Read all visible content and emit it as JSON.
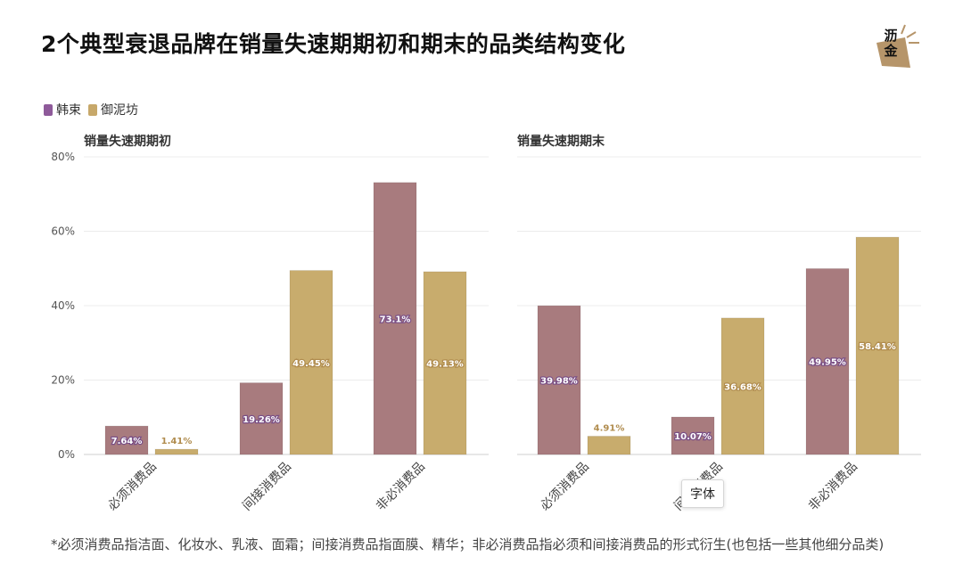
{
  "title": "2个典型衰退品牌在销量失速期期初和期末的品类结构变化",
  "logo": {
    "line1": "沥",
    "line2": "金"
  },
  "legend": [
    {
      "name": "韩束",
      "color": "#8e5a9a"
    },
    {
      "name": "御泥坊",
      "color": "#c7a86a"
    }
  ],
  "chart_data": [
    {
      "type": "bar",
      "title": "销量失速期期初",
      "categories": [
        "必须消费品",
        "间接消费品",
        "非必消费品"
      ],
      "series": [
        {
          "name": "韩束",
          "values": [
            7.64,
            19.26,
            73.1
          ],
          "labels": [
            "7.64%",
            "19.26%",
            "73.1%"
          ]
        },
        {
          "name": "御泥坊",
          "values": [
            1.41,
            49.45,
            49.13
          ],
          "labels": [
            "1.41%",
            "49.45%",
            "49.13%"
          ]
        }
      ],
      "yticks": [
        "0%",
        "20%",
        "40%",
        "60%",
        "80%"
      ],
      "ylim": [
        0,
        80
      ]
    },
    {
      "type": "bar",
      "title": "销量失速期期末",
      "categories": [
        "必须消费品",
        "间接消费品",
        "非必消费品"
      ],
      "series": [
        {
          "name": "韩束",
          "values": [
            39.98,
            10.07,
            49.95
          ],
          "labels": [
            "39.98%",
            "10.07%",
            "49.95%"
          ]
        },
        {
          "name": "御泥坊",
          "values": [
            4.91,
            36.68,
            58.41
          ],
          "labels": [
            "4.91%",
            "36.68%",
            "58.41%"
          ]
        }
      ],
      "ylim": [
        0,
        80
      ]
    }
  ],
  "bar_colors": [
    "#a87b7e",
    "#c8ac6d"
  ],
  "label_colors": [
    "#7a4f86",
    "#b08c4e"
  ],
  "tooltip": "字体",
  "footnote": "*必须消费品指洁面、化妆水、乳液、面霜；间接消费品指面膜、精华；非必消费品指必须和间接消费品的形式衍生(也包括一些其他细分品类)"
}
